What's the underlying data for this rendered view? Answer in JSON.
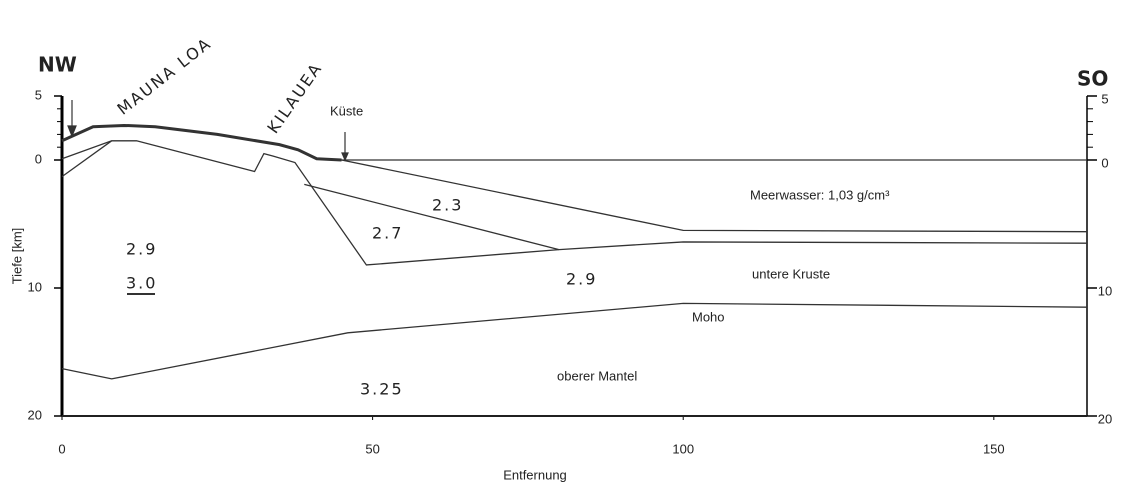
{
  "header": {
    "left": "NW",
    "right": "SO"
  },
  "axes": {
    "x": {
      "label": "Entfernung",
      "lim": [
        0,
        165
      ],
      "ticks": [
        0,
        50,
        100,
        150
      ]
    },
    "y": {
      "label": "Tiefe [km]",
      "lim": [
        -5,
        20
      ],
      "ticks": [
        {
          "value": -5,
          "label": "5"
        },
        0,
        10,
        20
      ]
    }
  },
  "labels": {
    "mauna_loa": "MAUNA LOA",
    "kilauea": "KILAUEA",
    "coast": "Küste",
    "seawater": "Meerwasser: 1,03 g/cm³",
    "d23": "2.3",
    "d27": "2.7",
    "d29a": "2.9",
    "d30": "3.0",
    "d29b": "2.9",
    "lower_crust": "untere Kruste",
    "moho": "Moho",
    "upper_mantle": "oberer Mantel",
    "d325": "3.25"
  },
  "boundaries": [
    {
      "bold": true,
      "points": [
        [
          0,
          -1.5
        ],
        [
          5,
          -2.6
        ],
        [
          10,
          -2.7
        ],
        [
          15,
          -2.6
        ],
        [
          25,
          -2.0
        ],
        [
          35,
          -1.2
        ],
        [
          38,
          -0.8
        ],
        [
          41,
          -0.1
        ],
        [
          45,
          0
        ]
      ]
    },
    {
      "bold": false,
      "points": [
        [
          45,
          0
        ],
        [
          165,
          0
        ]
      ]
    },
    {
      "bold": false,
      "points": [
        [
          0,
          -0.1
        ],
        [
          8,
          -1.5
        ],
        [
          12,
          -1.5
        ],
        [
          31,
          0.9
        ],
        [
          32.5,
          -0.5
        ],
        [
          34,
          -0.3
        ],
        [
          37.5,
          0.2
        ],
        [
          49,
          8.2
        ],
        [
          80,
          7.0
        ],
        [
          100,
          6.4
        ],
        [
          165,
          6.5
        ]
      ]
    },
    {
      "bold": false,
      "points": [
        [
          0,
          1.3
        ],
        [
          8,
          -1.5
        ]
      ]
    },
    {
      "bold": false,
      "points": [
        [
          45,
          0
        ],
        [
          100,
          5.5
        ],
        [
          165,
          5.6
        ]
      ]
    },
    {
      "bold": false,
      "points": [
        [
          39,
          1.9
        ],
        [
          80,
          7.0
        ]
      ]
    },
    {
      "bold": false,
      "points": [
        [
          0,
          16.3
        ],
        [
          8,
          17.1
        ],
        [
          46,
          13.5
        ],
        [
          100,
          11.2
        ],
        [
          165,
          11.5
        ]
      ]
    },
    {
      "bold": false,
      "points": [
        [
          0,
          20
        ],
        [
          165,
          20
        ]
      ]
    }
  ]
}
